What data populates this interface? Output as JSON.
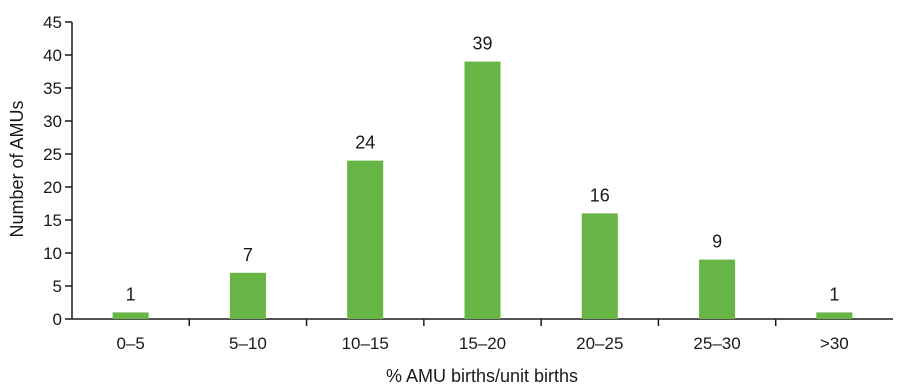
{
  "chart_data": {
    "type": "bar",
    "categories": [
      "0–5",
      "5–10",
      "10–15",
      "15–20",
      "20–25",
      "25–30",
      ">30"
    ],
    "values": [
      1,
      7,
      24,
      39,
      16,
      9,
      1
    ],
    "data_labels": [
      "1",
      "7",
      "24",
      "39",
      "16",
      "9",
      "1"
    ],
    "xlabel": "% AMU births/unit births",
    "ylabel": "Number of AMUs",
    "ylim": [
      0,
      45
    ],
    "yticks": [
      0,
      5,
      10,
      15,
      20,
      25,
      30,
      35,
      40,
      45
    ],
    "grid": false,
    "legend": "none",
    "bar_color": "#66b545",
    "axis_color": "#1a1a1a"
  }
}
